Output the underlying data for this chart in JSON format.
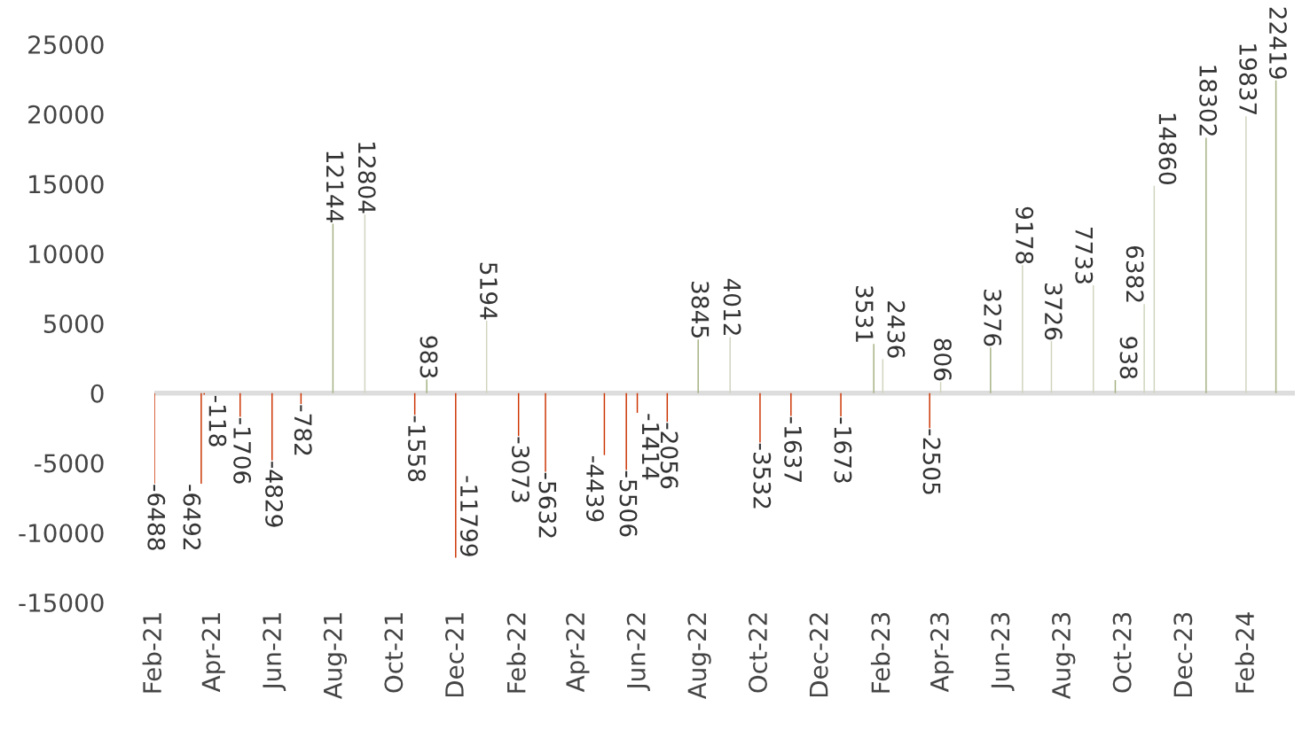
{
  "chart_data": {
    "type": "bar",
    "x": [
      "2021-02-01",
      "2021-03-20",
      "2021-03-23",
      "2021-04-28",
      "2021-05-30",
      "2021-06-28",
      "2021-07-30",
      "2021-08-31",
      "2021-10-20",
      "2021-11-01",
      "2021-11-30",
      "2021-12-31",
      "2022-02-01",
      "2022-02-28",
      "2022-04-28",
      "2022-05-20",
      "2022-05-31",
      "2022-06-30",
      "2022-07-31",
      "2022-09-01",
      "2022-10-01",
      "2022-11-01",
      "2022-12-21",
      "2023-01-23",
      "2023-02-01",
      "2023-03-20",
      "2023-03-31",
      "2023-05-20",
      "2023-06-21",
      "2023-07-20",
      "2023-08-31",
      "2023-09-22",
      "2023-10-21",
      "2023-10-31",
      "2023-12-22",
      "2024-01-31",
      "2024-03-01"
    ],
    "values": [
      -6488,
      -6492,
      -118,
      -1706,
      -4829,
      -782,
      12144,
      12804,
      -1558,
      983,
      -11799,
      5194,
      -3073,
      -5632,
      -4439,
      -5506,
      -1414,
      -2056,
      3845,
      4012,
      -3532,
      -1637,
      -1673,
      3531,
      2436,
      -2505,
      806,
      3276,
      9178,
      3726,
      7733,
      938,
      6382,
      14860,
      18302,
      19837,
      22419
    ],
    "colors": [
      "#cc3300",
      "#cc3300",
      "#cc3300",
      "#cc3300",
      "#cc3300",
      "#cc3300",
      "#a3b181",
      "#cfd4bd",
      "#cc3300",
      "#a3b181",
      "#cc3300",
      "#cfd4bd",
      "#cc3300",
      "#cc3300",
      "#cc3300",
      "#cc3300",
      "#cc3300",
      "#cc3300",
      "#a3b181",
      "#cfd4bd",
      "#cc3300",
      "#cc3300",
      "#cc3300",
      "#a3b181",
      "#cfd4bd",
      "#cc3300",
      "#cfd4bd",
      "#a3b181",
      "#cfd4bd",
      "#cfd4bd",
      "#cfd4bd",
      "#a3b181",
      "#cfd4bd",
      "#cfd4bd",
      "#a3b181",
      "#cfd4bd",
      "#a3b181"
    ],
    "data_labels": true,
    "xlim": [
      "2021-02-01",
      "2024-03-20"
    ],
    "xticks": [
      {
        "value": "2021-02-01",
        "label": "Feb-21"
      },
      {
        "value": "2021-04-01",
        "label": "Apr-21"
      },
      {
        "value": "2021-06-01",
        "label": "Jun-21"
      },
      {
        "value": "2021-08-01",
        "label": "Aug-21"
      },
      {
        "value": "2021-10-01",
        "label": "Oct-21"
      },
      {
        "value": "2021-12-01",
        "label": "Dec-21"
      },
      {
        "value": "2022-02-01",
        "label": "Feb-22"
      },
      {
        "value": "2022-04-01",
        "label": "Apr-22"
      },
      {
        "value": "2022-06-01",
        "label": "Jun-22"
      },
      {
        "value": "2022-08-01",
        "label": "Aug-22"
      },
      {
        "value": "2022-10-01",
        "label": "Oct-22"
      },
      {
        "value": "2022-12-01",
        "label": "Dec-22"
      },
      {
        "value": "2023-02-01",
        "label": "Feb-23"
      },
      {
        "value": "2023-04-01",
        "label": "Apr-23"
      },
      {
        "value": "2023-06-01",
        "label": "Jun-23"
      },
      {
        "value": "2023-08-01",
        "label": "Aug-23"
      },
      {
        "value": "2023-10-01",
        "label": "Oct-23"
      },
      {
        "value": "2023-12-01",
        "label": "Dec-23"
      },
      {
        "value": "2024-02-01",
        "label": "Feb-24"
      }
    ],
    "ylim": [
      -15000,
      25000
    ],
    "yticks": [
      -15000,
      -10000,
      -5000,
      0,
      5000,
      10000,
      15000,
      20000,
      25000
    ],
    "ref_lines": [
      {
        "axis": "y",
        "value": 0,
        "color": "#dddddd"
      }
    ],
    "grid": false,
    "legend": false
  }
}
